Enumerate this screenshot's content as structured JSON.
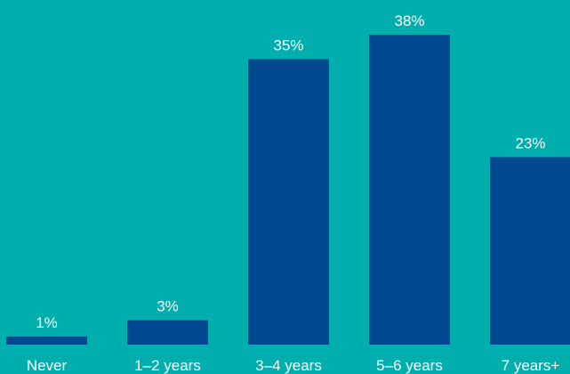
{
  "colors": {
    "background": "#00aead",
    "bar": "#004990",
    "text": "#ffffff"
  },
  "chart_data": {
    "type": "bar",
    "title": "",
    "xlabel": "",
    "ylabel": "",
    "categories": [
      "Never",
      "1–2 years",
      "3–4 years",
      "5–6 years",
      "7 years+"
    ],
    "values": [
      1,
      3,
      35,
      38,
      23
    ],
    "value_labels": [
      "1%",
      "3%",
      "35%",
      "38%",
      "23%"
    ],
    "ylim": [
      0,
      38
    ],
    "grid": false,
    "legend": "none"
  }
}
